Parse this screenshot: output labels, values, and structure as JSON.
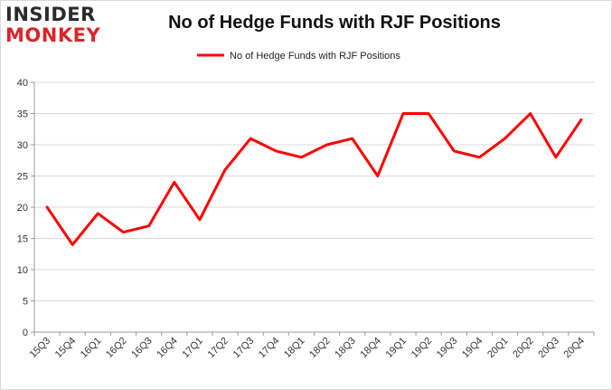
{
  "logo": {
    "line1": "INSIDER",
    "line2": "MONKEY"
  },
  "chart_data": {
    "type": "line",
    "title": "No of Hedge Funds with RJF Positions",
    "xlabel": "",
    "ylabel": "",
    "ylim": [
      0,
      40
    ],
    "yticks": [
      0,
      5,
      10,
      15,
      20,
      25,
      30,
      35,
      40
    ],
    "grid": "horizontal",
    "legend_position": "top-center",
    "categories": [
      "15Q3",
      "15Q4",
      "16Q1",
      "16Q2",
      "16Q3",
      "16Q4",
      "17Q1",
      "17Q2",
      "17Q3",
      "17Q4",
      "18Q1",
      "18Q2",
      "18Q3",
      "18Q4",
      "19Q1",
      "19Q2",
      "19Q3",
      "19Q4",
      "20Q1",
      "20Q2",
      "20Q3",
      "20Q4"
    ],
    "series": [
      {
        "name": "No of Hedge Funds with RJF Positions",
        "color": "#ff0000",
        "values": [
          20,
          14,
          19,
          16,
          17,
          24,
          18,
          26,
          31,
          29,
          28,
          30,
          31,
          25,
          35,
          35,
          29,
          28,
          31,
          35,
          28,
          34
        ]
      }
    ]
  }
}
